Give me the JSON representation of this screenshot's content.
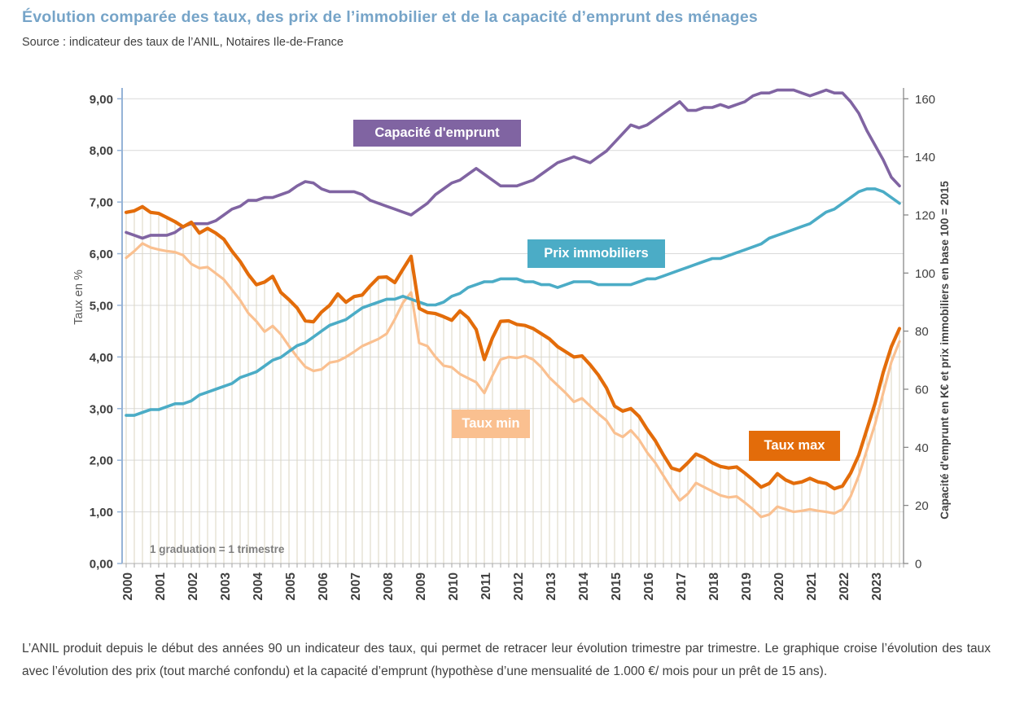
{
  "page": {
    "title": "Évolution comparée des taux, des prix de l’immobilier et de la capacité d’emprunt des ménages",
    "source": "Source : indicateur des taux de l’ANIL, Notaires Ile-de-France",
    "footer_paragraph": "L’ANIL produit depuis le début des années 90 un indicateur des taux, qui permet de retracer leur évolution trimestre par trimestre. Le graphique croise l’évolution des taux avec l’évolution des prix (tout marché confondu) et la capacité d’emprunt (hypothèse d’une mensualité de 1.000 €/ mois pour un prêt de 15 ans)."
  },
  "colors": {
    "title_blue": "#76a4c8",
    "capacite_purple": "#8064A2",
    "prix_teal": "#4BACC6",
    "taux_max_orange": "#E36C0A",
    "taux_min_peach": "#FAC090",
    "gridline_gray": "#D9D9D9",
    "drop_line_tan": "#DBD6C0",
    "left_axis_blue": "#95B3D7",
    "axis_text_gray": "#404040"
  },
  "chart_data": {
    "type": "line",
    "x": {
      "years": [
        "2000",
        "2001",
        "2002",
        "2003",
        "2004",
        "2005",
        "2006",
        "2007",
        "2008",
        "2009",
        "2010",
        "2011",
        "2012",
        "2013",
        "2014",
        "2015",
        "2016",
        "2017",
        "2018",
        "2019",
        "2020",
        "2021",
        "2022",
        "2023"
      ],
      "points_per_year": 4,
      "unit": "trimestre"
    },
    "left_axis": {
      "title": "Taux en  %",
      "range": [
        0,
        9
      ],
      "tick_labels": [
        "0,00",
        "1,00",
        "2,00",
        "3,00",
        "4,00",
        "5,00",
        "6,00",
        "7,00",
        "8,00",
        "9,00"
      ]
    },
    "right_axis": {
      "title": "Capacité d'emprunt en K€ et prix immobiliers en base 100 = 2015",
      "range": [
        0,
        160
      ],
      "tick_labels": [
        "0",
        "20",
        "40",
        "60",
        "80",
        "100",
        "120",
        "140",
        "160"
      ]
    },
    "annotation": "1 graduation = 1 trimestre",
    "drop_lines": {
      "source_series": "Taux max",
      "color": "#DBD6C0"
    },
    "series": [
      {
        "name": "Capacité d'emprunt",
        "axis": "right",
        "unit": "K€",
        "color": "#8064A2",
        "values": [
          114,
          113,
          112,
          113,
          113,
          113,
          114,
          116,
          117,
          117,
          117,
          118,
          120,
          122,
          123,
          125,
          125,
          126,
          126,
          127,
          128,
          130,
          131.5,
          131,
          129,
          128,
          128,
          128,
          128,
          127,
          125,
          124,
          123,
          122,
          121,
          120,
          122,
          124,
          127,
          129,
          131,
          132,
          134,
          136,
          134,
          132,
          130,
          130,
          130,
          131,
          132,
          134,
          136,
          138,
          139,
          140,
          139,
          138,
          140,
          142,
          145,
          148,
          151,
          150,
          151,
          153,
          155,
          157,
          159,
          156,
          156,
          157,
          157,
          158,
          157,
          158,
          159,
          161,
          162,
          162,
          163,
          163,
          163,
          162,
          161,
          162,
          163,
          162,
          162,
          159,
          155,
          149,
          144,
          139,
          133,
          130
        ]
      },
      {
        "name": "Prix immobiliers",
        "axis": "right",
        "unit": "base 100 = 2015",
        "color": "#4BACC6",
        "values": [
          51,
          51,
          52,
          53,
          53,
          54,
          55,
          55,
          56,
          58,
          59,
          60,
          61,
          62,
          64,
          65,
          66,
          68,
          70,
          71,
          73,
          75,
          76,
          78,
          80,
          82,
          83,
          84,
          86,
          88,
          89,
          90,
          91,
          91,
          92,
          91,
          90,
          89,
          89,
          90,
          92,
          93,
          95,
          96,
          97,
          97,
          98,
          98,
          98,
          97,
          97,
          96,
          96,
          95,
          96,
          97,
          97,
          97,
          96,
          96,
          96,
          96,
          96,
          97,
          98,
          98,
          99,
          100,
          101,
          102,
          103,
          104,
          105,
          105,
          106,
          107,
          108,
          109,
          110,
          112,
          113,
          114,
          115,
          116,
          117,
          119,
          121,
          122,
          124,
          126,
          128,
          129,
          129,
          128,
          126,
          124
        ]
      },
      {
        "name": "Taux max",
        "axis": "left",
        "unit": "%",
        "color": "#E36C0A",
        "values": [
          6.8,
          6.83,
          6.91,
          6.8,
          6.78,
          6.7,
          6.62,
          6.52,
          6.61,
          6.4,
          6.49,
          6.4,
          6.28,
          6.05,
          5.85,
          5.6,
          5.4,
          5.45,
          5.56,
          5.25,
          5.11,
          4.95,
          4.7,
          4.68,
          4.87,
          5.0,
          5.22,
          5.06,
          5.17,
          5.2,
          5.38,
          5.54,
          5.55,
          5.44,
          5.7,
          5.95,
          4.94,
          4.86,
          4.84,
          4.78,
          4.71,
          4.89,
          4.76,
          4.53,
          3.95,
          4.37,
          4.69,
          4.7,
          4.63,
          4.61,
          4.55,
          4.45,
          4.35,
          4.2,
          4.1,
          4.0,
          4.02,
          3.85,
          3.65,
          3.4,
          3.05,
          2.95,
          3.0,
          2.85,
          2.6,
          2.38,
          2.1,
          1.85,
          1.8,
          1.95,
          2.12,
          2.05,
          1.95,
          1.88,
          1.85,
          1.87,
          1.75,
          1.62,
          1.48,
          1.55,
          1.74,
          1.62,
          1.55,
          1.58,
          1.65,
          1.58,
          1.55,
          1.45,
          1.5,
          1.75,
          2.1,
          2.6,
          3.1,
          3.7,
          4.2,
          4.55
        ]
      },
      {
        "name": "Taux min",
        "axis": "left",
        "unit": "%",
        "color": "#FAC090",
        "values": [
          5.92,
          6.05,
          6.2,
          6.12,
          6.08,
          6.05,
          6.03,
          5.97,
          5.8,
          5.72,
          5.74,
          5.62,
          5.5,
          5.3,
          5.1,
          4.85,
          4.69,
          4.49,
          4.6,
          4.44,
          4.21,
          4.0,
          3.81,
          3.73,
          3.76,
          3.89,
          3.92,
          4.0,
          4.1,
          4.21,
          4.28,
          4.35,
          4.45,
          4.73,
          5.05,
          5.25,
          4.27,
          4.21,
          4.0,
          3.83,
          3.8,
          3.67,
          3.59,
          3.51,
          3.3,
          3.64,
          3.95,
          4.0,
          3.98,
          4.02,
          3.95,
          3.8,
          3.6,
          3.45,
          3.3,
          3.13,
          3.2,
          3.05,
          2.9,
          2.77,
          2.53,
          2.45,
          2.58,
          2.4,
          2.15,
          1.95,
          1.7,
          1.45,
          1.22,
          1.35,
          1.56,
          1.48,
          1.4,
          1.32,
          1.28,
          1.3,
          1.18,
          1.05,
          0.9,
          0.95,
          1.1,
          1.05,
          1.0,
          1.02,
          1.05,
          1.02,
          1.0,
          0.97,
          1.05,
          1.3,
          1.7,
          2.2,
          2.7,
          3.3,
          3.9,
          4.3
        ]
      }
    ]
  }
}
